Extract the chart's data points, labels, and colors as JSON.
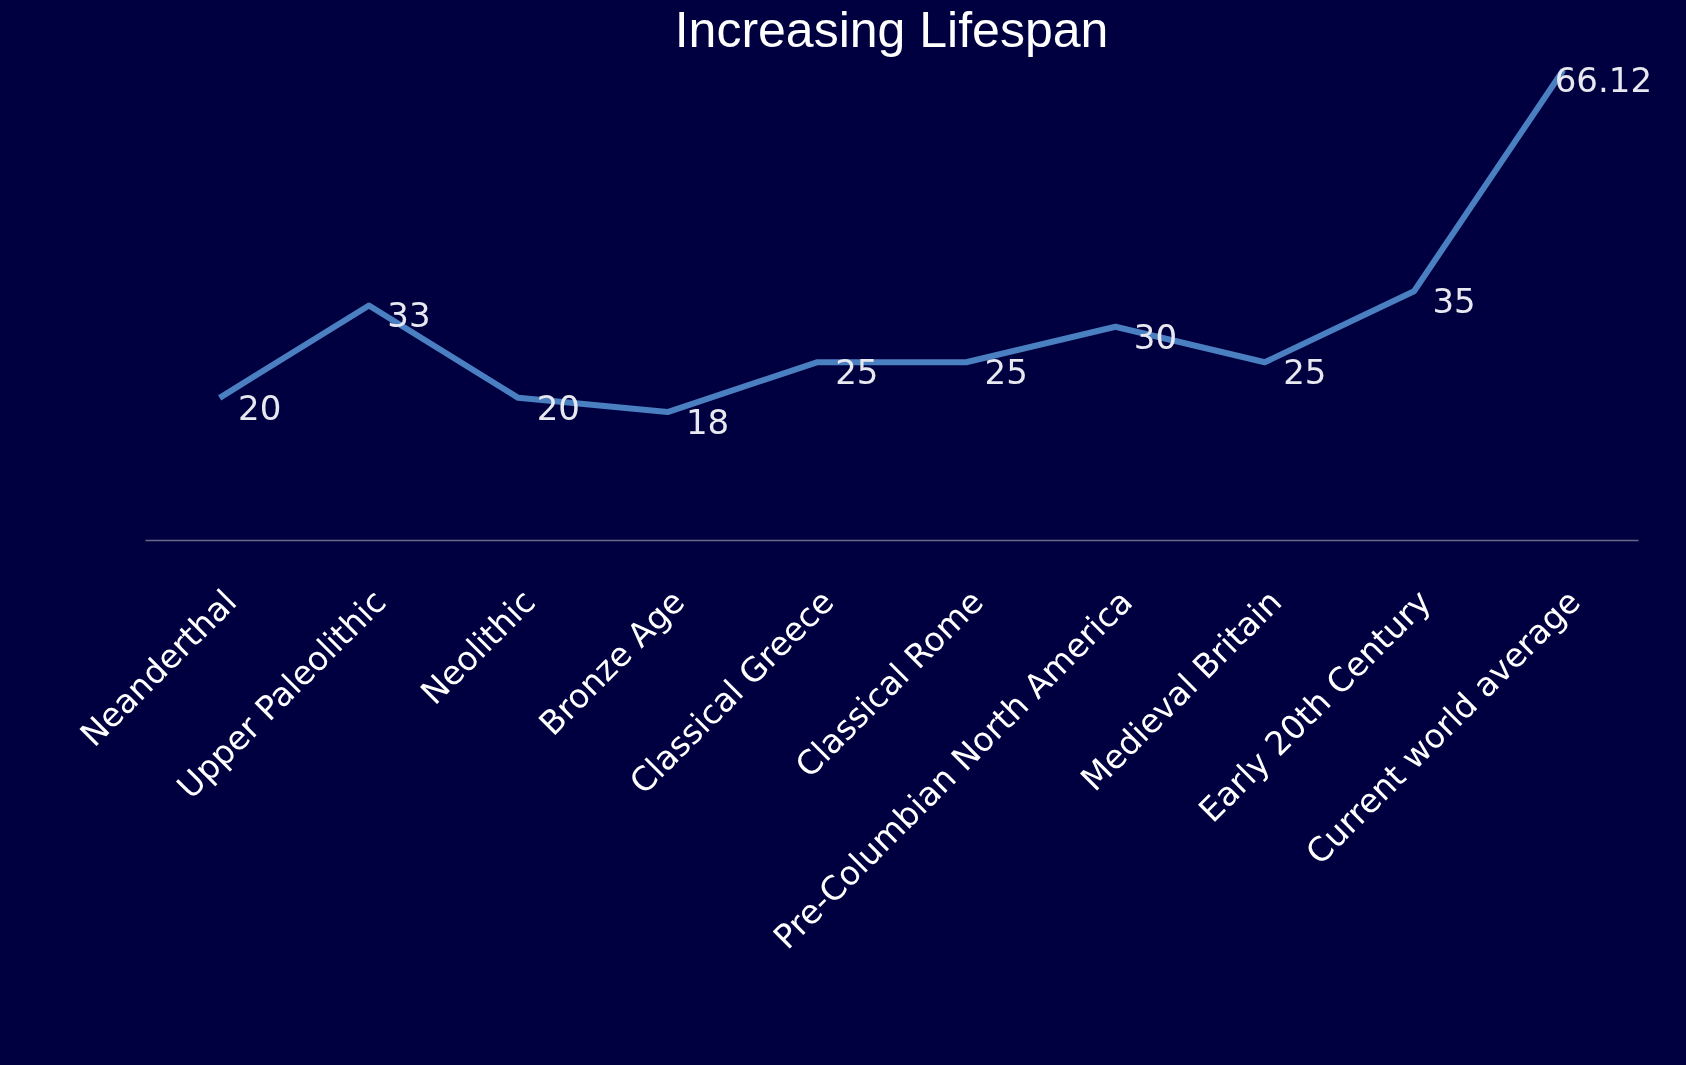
{
  "chart_data": {
    "type": "line",
    "title": "Increasing Lifespan",
    "categories": [
      "Neanderthal",
      "Upper Paleolithic",
      "Neolithic",
      "Bronze Age",
      "Classical Greece",
      "Classical Rome",
      "Pre-Columbian North America",
      "Medieval Britain",
      "Early 20th Century",
      "Current world average"
    ],
    "series": [
      {
        "color": "#4a7fc1",
        "values": [
          20,
          33,
          20,
          18,
          25,
          25,
          30,
          25,
          35,
          66.12
        ]
      }
    ],
    "tick_labels": "x",
    "data_labels": true,
    "grid": false,
    "legend": false,
    "marker": "none",
    "line_style": "solid"
  }
}
